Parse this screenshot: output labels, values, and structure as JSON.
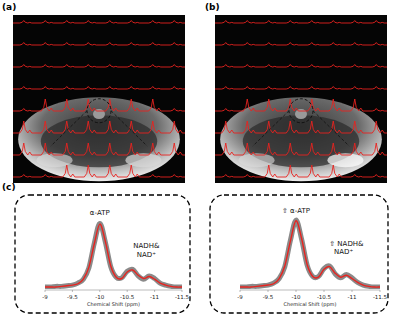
{
  "panels": [
    "(a)",
    "(b)",
    "(c)"
  ],
  "chart_data": [
    {
      "type": "line",
      "x": [
        -9,
        -9.1,
        -9.2,
        -9.3,
        -9.4,
        -9.5,
        -9.6,
        -9.7,
        -9.8,
        -9.9,
        -10,
        -10.1,
        -10.2,
        -10.3,
        -10.4,
        -10.5,
        -10.6,
        -10.7,
        -10.8,
        -10.9,
        -11,
        -11.1,
        -11.2,
        -11.3,
        -11.4,
        -11.5
      ],
      "xlim": [
        -9,
        -11.5
      ],
      "xticks": [
        -9,
        -9.5,
        -10,
        -10.5,
        -11,
        -11.5
      ],
      "ylim": [
        0,
        1.25
      ],
      "x_label": "Chemical Shift (ppm)",
      "tick_labels": "x",
      "grid": false,
      "series": [
        {
          "color": "#8a8a8a",
          "line_style": "solid",
          "values": [
            0.03,
            0.03,
            0.04,
            0.04,
            0.05,
            0.06,
            0.09,
            0.15,
            0.32,
            0.7,
            1.0,
            0.72,
            0.34,
            0.18,
            0.17,
            0.27,
            0.3,
            0.2,
            0.15,
            0.2,
            0.16,
            0.09,
            0.06,
            0.04,
            0.03,
            0.03
          ]
        },
        {
          "color": "#e8231f",
          "line_style": "solid",
          "values": [
            0.03,
            0.03,
            0.03,
            0.04,
            0.05,
            0.06,
            0.08,
            0.15,
            0.33,
            0.69,
            0.99,
            0.73,
            0.35,
            0.18,
            0.16,
            0.26,
            0.29,
            0.21,
            0.16,
            0.19,
            0.15,
            0.09,
            0.06,
            0.04,
            0.03,
            0.03
          ]
        }
      ],
      "annotations": [
        {
          "text": "α-ATP",
          "x": -10,
          "y": 1.13
        },
        {
          "text": "NADH&",
          "x": -10.85,
          "y": 0.62
        },
        {
          "text": "NAD⁺",
          "x": -10.85,
          "y": 0.49
        }
      ]
    },
    {
      "type": "line",
      "x": [
        -9,
        -9.1,
        -9.2,
        -9.3,
        -9.4,
        -9.5,
        -9.6,
        -9.7,
        -9.8,
        -9.9,
        -10,
        -10.1,
        -10.2,
        -10.3,
        -10.4,
        -10.5,
        -10.6,
        -10.7,
        -10.8,
        -10.9,
        -11,
        -11.1,
        -11.2,
        -11.3,
        -11.4,
        -11.5
      ],
      "xlim": [
        -9,
        -11.5
      ],
      "xticks": [
        -9,
        -9.5,
        -10,
        -10.5,
        -11,
        -11.5
      ],
      "ylim": [
        0,
        1.25
      ],
      "x_label": "Chemical Shift (ppm)",
      "tick_labels": "x",
      "grid": false,
      "series": [
        {
          "color": "#8a8a8a",
          "line_style": "solid",
          "values": [
            0.03,
            0.03,
            0.04,
            0.04,
            0.05,
            0.06,
            0.09,
            0.16,
            0.34,
            0.74,
            1.05,
            0.76,
            0.36,
            0.19,
            0.19,
            0.31,
            0.35,
            0.23,
            0.17,
            0.22,
            0.17,
            0.1,
            0.06,
            0.04,
            0.03,
            0.03
          ]
        },
        {
          "color": "#e8231f",
          "line_style": "solid",
          "values": [
            0.03,
            0.03,
            0.03,
            0.04,
            0.05,
            0.06,
            0.08,
            0.16,
            0.35,
            0.73,
            1.04,
            0.77,
            0.37,
            0.19,
            0.18,
            0.3,
            0.34,
            0.24,
            0.18,
            0.21,
            0.16,
            0.1,
            0.06,
            0.04,
            0.03,
            0.03
          ]
        }
      ],
      "annotations": [
        {
          "text": "⇧ α-ATP",
          "x": -10,
          "y": 1.16
        },
        {
          "text": "⇧ NADH&",
          "x": -10.9,
          "y": 0.66
        },
        {
          "text": "NAD⁺",
          "x": -10.85,
          "y": 0.53
        }
      ]
    }
  ]
}
